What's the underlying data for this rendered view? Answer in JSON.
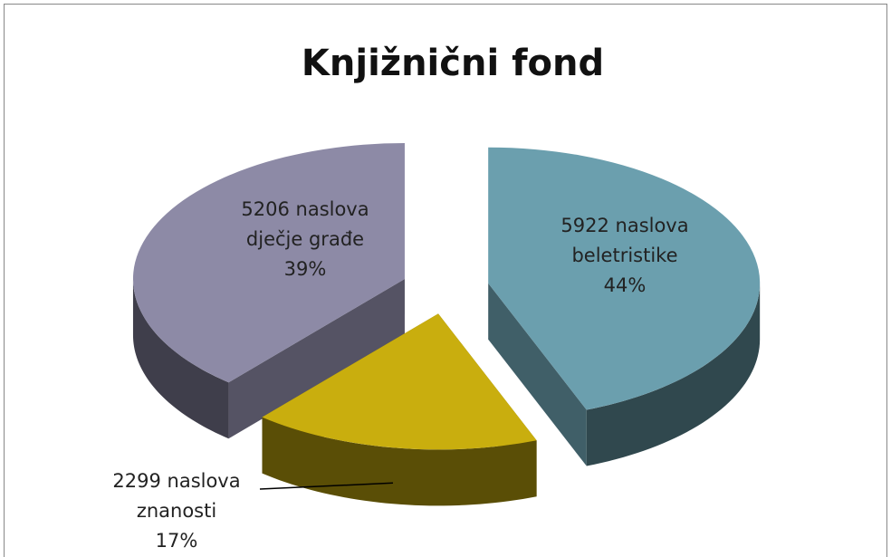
{
  "chart_data": {
    "type": "pie",
    "title": "Knjižnični fond",
    "categories": [
      "beletristike",
      "znanosti",
      "dječje građe"
    ],
    "values": [
      5922,
      2299,
      5206
    ],
    "value_labels": [
      "5922 naslova",
      "2299 naslova",
      "5206 naslova"
    ],
    "percents": [
      44,
      17,
      39
    ],
    "percent_labels": [
      "44%",
      "17%",
      "39%"
    ],
    "colors": [
      "#6b9fae",
      "#c9ae0e",
      "#8d8aa6"
    ]
  }
}
